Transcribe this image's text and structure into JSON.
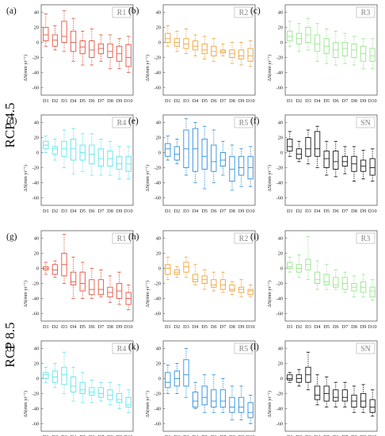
{
  "figure": {
    "row_labels": [
      "RCP 4.5",
      "RCP 8.5"
    ],
    "colors": {
      "R1": "#e8533f",
      "R2": "#f0a43a",
      "R3": "#96e68a",
      "R4": "#5ee4ea",
      "R5": "#2f8fe0",
      "SN": "#1a1a1a"
    }
  },
  "chart_data": [
    {
      "panel": "(a)",
      "region": "R1",
      "scenario": "RCP 4.5",
      "type": "box",
      "ylabel": "ΔS(mm yr⁻¹)",
      "ylim": [
        -70,
        50
      ],
      "yticks": [
        40,
        20,
        0,
        -20,
        -40,
        -60
      ],
      "categories": [
        "D1",
        "D2",
        "D3",
        "D4",
        "D5",
        "D6",
        "D7",
        "D8",
        "D9",
        "D10"
      ],
      "boxes": [
        [
          -5,
          2,
          10,
          20,
          38
        ],
        [
          -10,
          -5,
          3,
          10,
          22
        ],
        [
          -12,
          0,
          8,
          28,
          42
        ],
        [
          -25,
          -12,
          0,
          15,
          32
        ],
        [
          -30,
          -15,
          -6,
          2,
          15
        ],
        [
          -30,
          -20,
          -10,
          2,
          18
        ],
        [
          -25,
          -15,
          -8,
          -2,
          10
        ],
        [
          -35,
          -20,
          -12,
          -2,
          10
        ],
        [
          -35,
          -25,
          -15,
          -5,
          5
        ],
        [
          -40,
          -32,
          -20,
          -3,
          8
        ]
      ]
    },
    {
      "panel": "(b)",
      "region": "R2",
      "scenario": "RCP 4.5",
      "type": "box",
      "ylabel": "ΔS(mm yr⁻¹)",
      "ylim": [
        -70,
        50
      ],
      "yticks": [
        40,
        20,
        0,
        -20,
        -40,
        -60
      ],
      "categories": [
        "D1",
        "D2",
        "D3",
        "D4",
        "D5",
        "D6",
        "D7",
        "D8",
        "D9",
        "D10"
      ],
      "boxes": [
        [
          -5,
          0,
          5,
          12,
          22
        ],
        [
          -12,
          -5,
          0,
          5,
          15
        ],
        [
          -15,
          -8,
          -2,
          5,
          18
        ],
        [
          -18,
          -10,
          -5,
          2,
          10
        ],
        [
          -22,
          -15,
          -10,
          -2,
          8
        ],
        [
          -25,
          -18,
          -12,
          -5,
          5
        ],
        [
          -18,
          -14,
          -12,
          -10,
          -2
        ],
        [
          -28,
          -20,
          -15,
          -10,
          0
        ],
        [
          -30,
          -22,
          -18,
          -10,
          0
        ],
        [
          -32,
          -25,
          -18,
          -8,
          2
        ]
      ]
    },
    {
      "panel": "(c)",
      "region": "R3",
      "scenario": "RCP 4.5",
      "type": "box",
      "ylabel": "ΔS(mm yr⁻¹)",
      "ylim": [
        -70,
        50
      ],
      "yticks": [
        40,
        20,
        0,
        -20,
        -40,
        -60
      ],
      "categories": [
        "D1",
        "D2",
        "D3",
        "D4",
        "D5",
        "D6",
        "D7",
        "D8",
        "D9",
        "D10"
      ],
      "boxes": [
        [
          -5,
          2,
          8,
          15,
          28
        ],
        [
          -12,
          -2,
          5,
          12,
          25
        ],
        [
          -10,
          0,
          10,
          20,
          32
        ],
        [
          -25,
          -12,
          -2,
          10,
          25
        ],
        [
          -28,
          -15,
          -5,
          5,
          18
        ],
        [
          -30,
          -20,
          -10,
          0,
          15
        ],
        [
          -28,
          -18,
          -8,
          0,
          12
        ],
        [
          -30,
          -20,
          -10,
          -2,
          8
        ],
        [
          -35,
          -25,
          -15,
          -5,
          5
        ],
        [
          -35,
          -25,
          -18,
          -8,
          5
        ]
      ]
    },
    {
      "panel": "(d)",
      "region": "R4",
      "scenario": "RCP 4.5",
      "type": "box",
      "ylabel": "ΔS(mm yr⁻¹)",
      "ylim": [
        -70,
        50
      ],
      "yticks": [
        40,
        20,
        0,
        -20,
        -40,
        -60
      ],
      "categories": [
        "D1",
        "D2",
        "D3",
        "D4",
        "D5",
        "D6",
        "D7",
        "D8",
        "D9",
        "D10"
      ],
      "boxes": [
        [
          0,
          5,
          10,
          15,
          22
        ],
        [
          -10,
          -2,
          5,
          8,
          18
        ],
        [
          -20,
          -5,
          5,
          15,
          30
        ],
        [
          -28,
          -10,
          5,
          18,
          32
        ],
        [
          -25,
          -10,
          0,
          10,
          25
        ],
        [
          -30,
          -15,
          -2,
          10,
          25
        ],
        [
          -30,
          -18,
          -8,
          5,
          18
        ],
        [
          -30,
          -18,
          -8,
          2,
          15
        ],
        [
          -35,
          -22,
          -15,
          -5,
          8
        ],
        [
          -35,
          -25,
          -15,
          -5,
          8
        ]
      ]
    },
    {
      "panel": "(e)",
      "region": "R5",
      "scenario": "RCP 4.5",
      "type": "box",
      "ylabel": "ΔS(mm yr⁻¹)",
      "ylim": [
        -70,
        50
      ],
      "yticks": [
        40,
        20,
        0,
        -20,
        -40,
        -60
      ],
      "categories": [
        "D1",
        "D2",
        "D3",
        "D4",
        "D5",
        "D6",
        "D7",
        "D8",
        "D9",
        "D10"
      ],
      "boxes": [
        [
          -10,
          -5,
          5,
          12,
          22
        ],
        [
          -15,
          -10,
          -2,
          8,
          18
        ],
        [
          -30,
          -20,
          5,
          30,
          45
        ],
        [
          -40,
          -25,
          5,
          32,
          40
        ],
        [
          -48,
          -22,
          -5,
          18,
          35
        ],
        [
          -40,
          -25,
          -12,
          10,
          30
        ],
        [
          -30,
          -18,
          -10,
          0,
          15
        ],
        [
          -50,
          -38,
          -22,
          -5,
          10
        ],
        [
          -45,
          -30,
          -20,
          -5,
          5
        ],
        [
          -45,
          -35,
          -20,
          -5,
          8
        ]
      ]
    },
    {
      "panel": "(f)",
      "region": "SN",
      "scenario": "RCP 4.5",
      "type": "box",
      "ylabel": "ΔS(mm yr⁻¹)",
      "ylim": [
        -70,
        50
      ],
      "yticks": [
        40,
        20,
        0,
        -20,
        -40,
        -60
      ],
      "categories": [
        "D1",
        "D2",
        "D3",
        "D4",
        "D5",
        "D6",
        "D7",
        "D8",
        "D9",
        "D10"
      ],
      "boxes": [
        [
          -5,
          2,
          8,
          18,
          28
        ],
        [
          -12,
          -8,
          -2,
          5,
          15
        ],
        [
          -15,
          -5,
          5,
          20,
          30
        ],
        [
          -20,
          -5,
          5,
          28,
          35
        ],
        [
          -30,
          -20,
          -8,
          2,
          15
        ],
        [
          -32,
          -22,
          -12,
          2,
          15
        ],
        [
          -28,
          -18,
          -12,
          -5,
          8
        ],
        [
          -38,
          -25,
          -15,
          -5,
          8
        ],
        [
          -35,
          -25,
          -18,
          -10,
          3
        ],
        [
          -38,
          -30,
          -20,
          -8,
          5
        ]
      ]
    },
    {
      "panel": "(g)",
      "region": "R1",
      "scenario": "RCP 8.5",
      "type": "box",
      "ylabel": "ΔS(mm yr⁻¹)",
      "ylim": [
        -70,
        50
      ],
      "yticks": [
        40,
        20,
        0,
        -20,
        -40,
        -60
      ],
      "categories": [
        "D1",
        "D2",
        "D3",
        "D4",
        "D5",
        "D6",
        "D7",
        "D8",
        "D9",
        "D10"
      ],
      "boxes": [
        [
          -8,
          -2,
          0,
          2,
          8
        ],
        [
          -12,
          -8,
          -2,
          5,
          10
        ],
        [
          -20,
          -10,
          5,
          20,
          45
        ],
        [
          -40,
          -22,
          -18,
          -5,
          15
        ],
        [
          -40,
          -30,
          -20,
          -5,
          8
        ],
        [
          -40,
          -35,
          -28,
          -15,
          0
        ],
        [
          -38,
          -35,
          -28,
          -15,
          -2
        ],
        [
          -45,
          -38,
          -32,
          -25,
          -10
        ],
        [
          -48,
          -40,
          -30,
          -20,
          -5
        ],
        [
          -55,
          -48,
          -40,
          -32,
          -22
        ]
      ]
    },
    {
      "panel": "(h)",
      "region": "R2",
      "scenario": "RCP 8.5",
      "type": "box",
      "ylabel": "ΔS(mm yr⁻¹)",
      "ylim": [
        -70,
        50
      ],
      "yticks": [
        40,
        20,
        0,
        -20,
        -40,
        -60
      ],
      "categories": [
        "D1",
        "D2",
        "D3",
        "D4",
        "D5",
        "D6",
        "D7",
        "D8",
        "D9",
        "D10"
      ],
      "boxes": [
        [
          -15,
          -8,
          0,
          5,
          15
        ],
        [
          -12,
          -8,
          -5,
          -2,
          2
        ],
        [
          -12,
          -5,
          2,
          8,
          15
        ],
        [
          -22,
          -18,
          -15,
          -8,
          5
        ],
        [
          -28,
          -20,
          -15,
          -10,
          -2
        ],
        [
          -30,
          -25,
          -22,
          -15,
          -5
        ],
        [
          -32,
          -28,
          -22,
          -15,
          -5
        ],
        [
          -35,
          -30,
          -28,
          -22,
          -18
        ],
        [
          -38,
          -32,
          -28,
          -25,
          -15
        ],
        [
          -38,
          -35,
          -30,
          -28,
          -22
        ]
      ]
    },
    {
      "panel": "(i)",
      "region": "R3",
      "scenario": "RCP 8.5",
      "type": "box",
      "ylabel": "ΔS(mm yr⁻¹)",
      "ylim": [
        -70,
        50
      ],
      "yticks": [
        40,
        20,
        0,
        -20,
        -40,
        -60
      ],
      "categories": [
        "D1",
        "D2",
        "D3",
        "D4",
        "D5",
        "D6",
        "D7",
        "D8",
        "D9",
        "D10"
      ],
      "boxes": [
        [
          -5,
          0,
          2,
          8,
          15
        ],
        [
          -12,
          -5,
          0,
          5,
          18
        ],
        [
          -15,
          -2,
          5,
          12,
          42
        ],
        [
          -28,
          -20,
          -15,
          -5,
          10
        ],
        [
          -28,
          -22,
          -18,
          -8,
          5
        ],
        [
          -28,
          -25,
          -22,
          -12,
          -2
        ],
        [
          -32,
          -28,
          -20,
          -12,
          -5
        ],
        [
          -38,
          -30,
          -25,
          -20,
          -10
        ],
        [
          -38,
          -32,
          -25,
          -18,
          -8
        ],
        [
          -42,
          -38,
          -30,
          -25,
          -15
        ]
      ]
    },
    {
      "panel": "(j)",
      "region": "R4",
      "scenario": "RCP 8.5",
      "type": "box",
      "ylabel": "ΔS(mm yr⁻¹)",
      "ylim": [
        -70,
        50
      ],
      "yticks": [
        40,
        20,
        0,
        -20,
        -40,
        -60
      ],
      "categories": [
        "D1",
        "D2",
        "D3",
        "D4",
        "D5",
        "D6",
        "D7",
        "D8",
        "D9",
        "D10"
      ],
      "boxes": [
        [
          -5,
          0,
          5,
          8,
          15
        ],
        [
          -12,
          -5,
          2,
          10,
          20
        ],
        [
          -20,
          -8,
          5,
          15,
          35
        ],
        [
          -30,
          -18,
          -10,
          2,
          15
        ],
        [
          -32,
          -20,
          -15,
          -5,
          8
        ],
        [
          -32,
          -22,
          -18,
          -12,
          -2
        ],
        [
          -30,
          -25,
          -20,
          -12,
          -5
        ],
        [
          -35,
          -28,
          -22,
          -15,
          -5
        ],
        [
          -40,
          -32,
          -28,
          -20,
          -8
        ],
        [
          -45,
          -38,
          -35,
          -25,
          -15
        ]
      ]
    },
    {
      "panel": "(k)",
      "region": "R5",
      "scenario": "RCP 8.5",
      "type": "box",
      "ylabel": "ΔS(mm yr⁻¹)",
      "ylim": [
        -70,
        50
      ],
      "yticks": [
        40,
        20,
        0,
        -20,
        -40,
        -60
      ],
      "categories": [
        "D1",
        "D2",
        "D3",
        "D4",
        "D5",
        "D6",
        "D7",
        "D8",
        "D9",
        "D10"
      ],
      "boxes": [
        [
          -20,
          -12,
          -5,
          8,
          18
        ],
        [
          -20,
          -10,
          0,
          10,
          20
        ],
        [
          -25,
          -10,
          5,
          25,
          40
        ],
        [
          -40,
          -38,
          -30,
          -18,
          -5
        ],
        [
          -45,
          -35,
          -25,
          -10,
          5
        ],
        [
          -45,
          -38,
          -30,
          -15,
          5
        ],
        [
          -45,
          -38,
          -30,
          -15,
          0
        ],
        [
          -55,
          -45,
          -38,
          -25,
          -10
        ],
        [
          -55,
          -45,
          -38,
          -25,
          -10
        ],
        [
          -60,
          -52,
          -45,
          -32,
          -22
        ]
      ]
    },
    {
      "panel": "(l)",
      "region": "SN",
      "scenario": "RCP 8.5",
      "type": "box",
      "ylabel": "ΔS(mm yr⁻¹)",
      "ylim": [
        -70,
        50
      ],
      "yticks": [
        40,
        20,
        0,
        -20,
        -40,
        -60
      ],
      "categories": [
        "D1",
        "D2",
        "D3",
        "D4",
        "D5",
        "D6",
        "D7",
        "D8",
        "D9",
        "D10"
      ],
      "boxes": [
        [
          -5,
          -2,
          0,
          5,
          8
        ],
        [
          -10,
          -5,
          0,
          5,
          12
        ],
        [
          -15,
          -5,
          5,
          15,
          35
        ],
        [
          -35,
          -28,
          -22,
          -10,
          5
        ],
        [
          -38,
          -30,
          -20,
          -10,
          2
        ],
        [
          -38,
          -30,
          -25,
          -15,
          -5
        ],
        [
          -38,
          -30,
          -25,
          -15,
          -5
        ],
        [
          -45,
          -38,
          -30,
          -22,
          -10
        ],
        [
          -45,
          -38,
          -30,
          -20,
          -8
        ],
        [
          -50,
          -45,
          -38,
          -28,
          -15
        ]
      ]
    }
  ]
}
